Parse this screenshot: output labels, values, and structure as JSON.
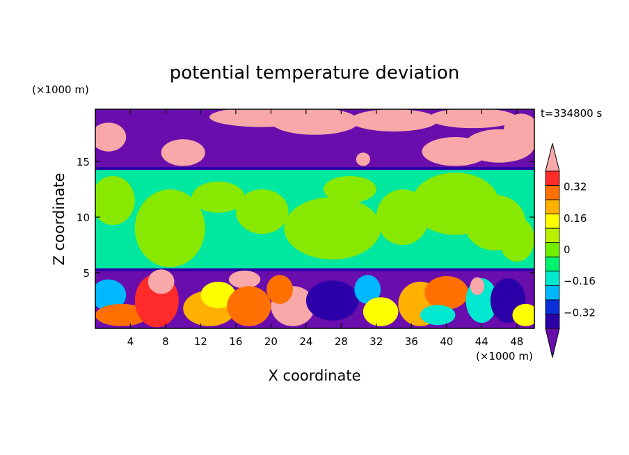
{
  "chart_data": {
    "type": "heatmap",
    "title": "potential temperature deviation",
    "xlabel": "X coordinate",
    "ylabel": "Z coordinate",
    "x_unit": "(×1000 m)",
    "z_unit": "(×1000 m)",
    "time_label": "t=334800 s",
    "xlim": [
      0,
      50
    ],
    "zlim": [
      0,
      19.7
    ],
    "x_ticks": [
      4,
      8,
      12,
      16,
      20,
      24,
      28,
      32,
      36,
      40,
      44,
      48
    ],
    "x_tick_labels": [
      "4",
      "8",
      "12",
      "16",
      "20",
      "24",
      "28",
      "32",
      "36",
      "40",
      "44",
      "48"
    ],
    "z_ticks": [
      5,
      10,
      15
    ],
    "z_tick_labels": [
      "5",
      "10",
      "15"
    ],
    "colorbar": {
      "levels": [
        -0.48,
        -0.4,
        -0.32,
        -0.24,
        -0.16,
        -0.08,
        0,
        0.08,
        0.16,
        0.24,
        0.32,
        0.4,
        0.48
      ],
      "tick_values": [
        0.32,
        0.16,
        0,
        -0.16,
        -0.32
      ],
      "tick_labels": [
        "0.32",
        "0.16",
        "0",
        "−0.16",
        "−0.32"
      ],
      "colors": [
        "#6a0dad",
        "#2b00a8",
        "#0b2fd8",
        "#00b8ff",
        "#00e8d0",
        "#00f070",
        "#70f000",
        "#b8f000",
        "#ffff00",
        "#ffb000",
        "#ff7000",
        "#ff2a2a",
        "#f8a8a8"
      ]
    },
    "layers": [
      {
        "name": "upper",
        "z": [
          14.3,
          19.7
        ],
        "base": "#6a0dad",
        "blobs": "#f8a8a8"
      },
      {
        "name": "middle",
        "z": [
          5.3,
          14.3
        ],
        "base": "#00e8a0",
        "blobs": "#88e800"
      },
      {
        "name": "lower",
        "z": [
          0,
          5.3
        ],
        "base": "#6a0dad",
        "blobs": "mixed"
      }
    ]
  }
}
